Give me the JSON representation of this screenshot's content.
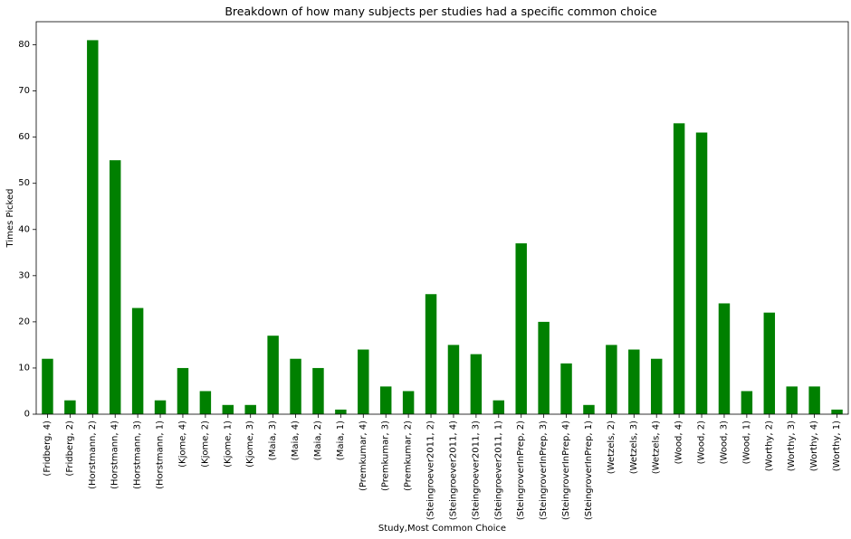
{
  "chart_data": {
    "type": "bar",
    "title": "Breakdown of how many subjects per studies had a specific common choice",
    "xlabel": "Study,Most Common Choice",
    "ylabel": "Times Picked",
    "ylim": [
      0,
      85
    ],
    "yticks": [
      0,
      10,
      20,
      30,
      40,
      50,
      60,
      70,
      80
    ],
    "grid": false,
    "legend": "none",
    "bar_color": "#008000",
    "categories": [
      "(Fridberg, 4)",
      "(Fridberg, 2)",
      "(Horstmann, 2)",
      "(Horstmann, 4)",
      "(Horstmann, 3)",
      "(Horstmann, 1)",
      "(Kjome, 4)",
      "(Kjome, 2)",
      "(Kjome, 1)",
      "(Kjome, 3)",
      "(Maia, 3)",
      "(Maia, 4)",
      "(Maia, 2)",
      "(Maia, 1)",
      "(Premkumar, 4)",
      "(Premkumar, 3)",
      "(Premkumar, 2)",
      "(Steingroever2011, 2)",
      "(Steingroever2011, 4)",
      "(Steingroever2011, 3)",
      "(Steingroever2011, 1)",
      "(SteingroverInPrep, 2)",
      "(SteingroverInPrep, 3)",
      "(SteingroverInPrep, 4)",
      "(SteingroverInPrep, 1)",
      "(Wetzels, 2)",
      "(Wetzels, 3)",
      "(Wetzels, 4)",
      "(Wood, 4)",
      "(Wood, 2)",
      "(Wood, 3)",
      "(Wood, 1)",
      "(Worthy, 2)",
      "(Worthy, 3)",
      "(Worthy, 4)",
      "(Worthy, 1)"
    ],
    "values": [
      12,
      3,
      81,
      55,
      23,
      3,
      10,
      5,
      2,
      2,
      17,
      12,
      10,
      1,
      14,
      6,
      5,
      26,
      15,
      13,
      3,
      37,
      20,
      11,
      2,
      15,
      14,
      12,
      63,
      61,
      24,
      5,
      22,
      6,
      6,
      1
    ]
  }
}
